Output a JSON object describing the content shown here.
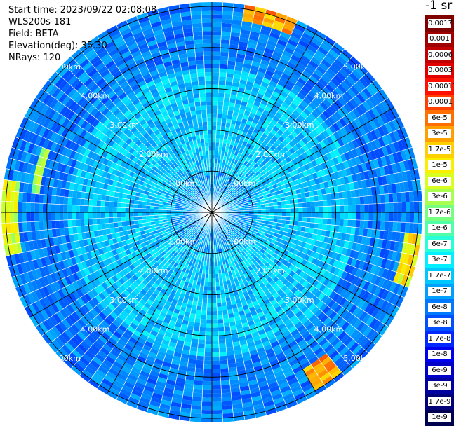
{
  "info": {
    "start_time": "Start time: 2023/09/22 02:08:08",
    "instrument": "WLS200s-181",
    "field": "Field: BETA",
    "elevation": "Elevation(deg): 35.30",
    "nrays": "NRays: 120"
  },
  "colorbar": {
    "title": "-1 sr",
    "labels": [
      "0.0017",
      "0.001",
      "0.0006",
      "0.0003",
      "0.00017",
      "0.0001",
      "6e-5",
      "3e-5",
      "1.7e-5",
      "1e-5",
      "6e-6",
      "3e-6",
      "1.7e-6",
      "1e-6",
      "6e-7",
      "3e-7",
      "1.7e-7",
      "1e-7",
      "6e-8",
      "3e-8",
      "1.7e-8",
      "1e-8",
      "6e-9",
      "3e-9",
      "1.7e-9",
      "1e-9"
    ],
    "colors": [
      "#800000",
      "#a00000",
      "#c00000",
      "#e00000",
      "#ff1000",
      "#ff4000",
      "#ff7000",
      "#ffa000",
      "#ffd000",
      "#f8f000",
      "#d8ff20",
      "#a8ff50",
      "#78ff80",
      "#50ffa8",
      "#28ffd8",
      "#00f0ff",
      "#00c8ff",
      "#00a0ff",
      "#0078ff",
      "#0050ff",
      "#0028ff",
      "#0000f0",
      "#0000c8",
      "#0000a0",
      "#000078",
      "#000050"
    ]
  },
  "chart_data": {
    "type": "ppi",
    "field": "BETA",
    "units": "-1 sr",
    "elevation_deg": 35.3,
    "nrays": 120,
    "range_rings_km": [
      1.0,
      2.0,
      3.0,
      4.0,
      5.0
    ],
    "ring_labels": [
      "1.00km",
      "2.00km",
      "3.00km",
      "4.00km",
      "5.00km"
    ],
    "max_range_km": 5.1,
    "color_scale": "log",
    "value_range": [
      1e-09,
      0.0017
    ],
    "typical_values": {
      "center_0_1km": 1e-07,
      "mid_1_3.5km": 1.7e-07,
      "outer_3.5_5km": 6e-08
    },
    "enhanced_features": [
      {
        "azimuth_deg_range": [
          10,
          25
        ],
        "range_km": [
          4.7,
          5.1
        ],
        "value": 3e-05
      },
      {
        "azimuth_deg_range": [
          95,
          112
        ],
        "range_km": [
          4.7,
          5.05
        ],
        "value": 1e-05
      },
      {
        "azimuth_deg_range": [
          140,
          150
        ],
        "range_km": [
          4.4,
          5.0
        ],
        "value": 3e-05
      },
      {
        "azimuth_deg_range": [
          257,
          280
        ],
        "range_km": [
          4.75,
          5.1
        ],
        "value": 6e-06
      },
      {
        "azimuth_deg_range": [
          275,
          292
        ],
        "range_km": [
          4.2,
          4.4
        ],
        "value": 3e-06
      }
    ]
  }
}
